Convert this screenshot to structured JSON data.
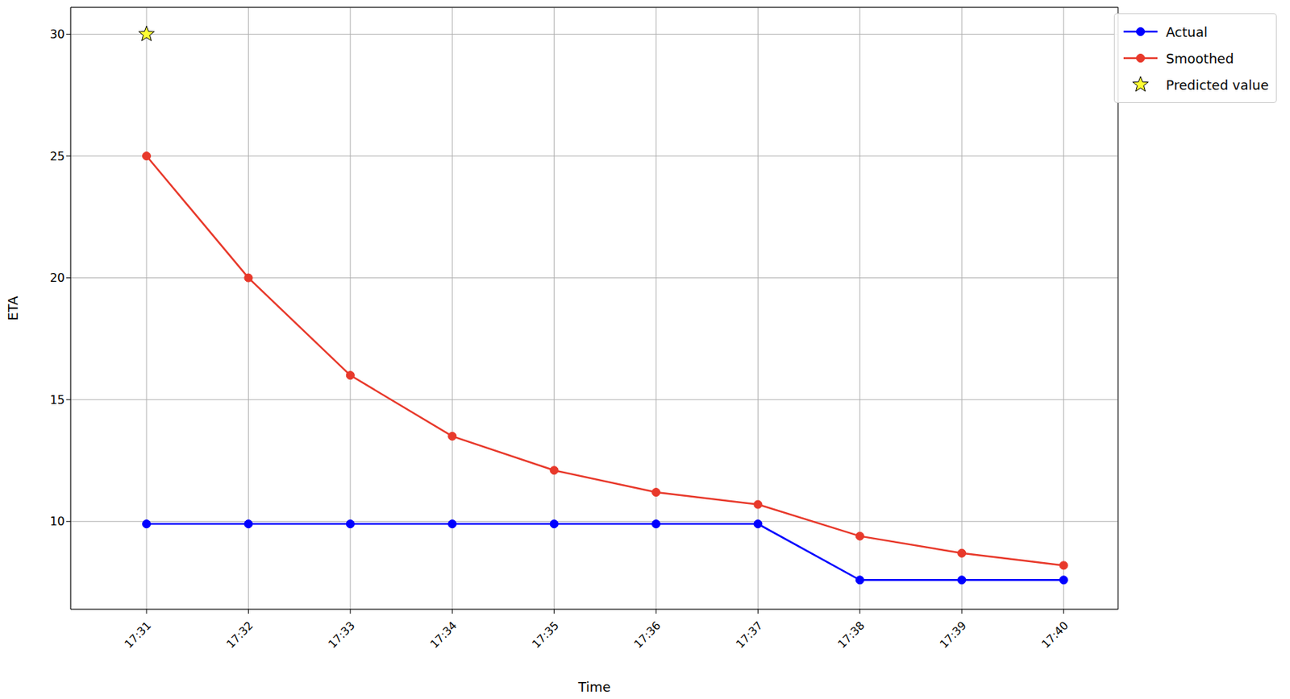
{
  "chart_data": {
    "type": "line",
    "x": [
      "17:31",
      "17:32",
      "17:33",
      "17:34",
      "17:35",
      "17:36",
      "17:37",
      "17:38",
      "17:39",
      "17:40"
    ],
    "series": [
      {
        "name": "Actual",
        "color": "#0000ff",
        "marker": "o",
        "values": [
          9.9,
          9.9,
          9.9,
          9.9,
          9.9,
          9.9,
          9.9,
          7.6,
          7.6,
          7.6
        ]
      },
      {
        "name": "Smoothed",
        "color": "#e8392b",
        "marker": "o",
        "values": [
          25,
          20,
          16,
          13.5,
          12.1,
          11.2,
          10.7,
          9.4,
          8.7,
          8.2
        ]
      },
      {
        "name": "Predicted value",
        "type": "scatter",
        "color": "#ffff33",
        "marker": "star",
        "values": [
          30,
          null,
          null,
          null,
          null,
          null,
          null,
          null,
          null,
          null
        ]
      }
    ],
    "xlabel": "Time",
    "ylabel": "ETA",
    "ylim": [
      6.4,
      31.1
    ],
    "yticks": [
      10,
      15,
      20,
      25,
      30
    ],
    "grid": true,
    "legend": "upper right"
  }
}
